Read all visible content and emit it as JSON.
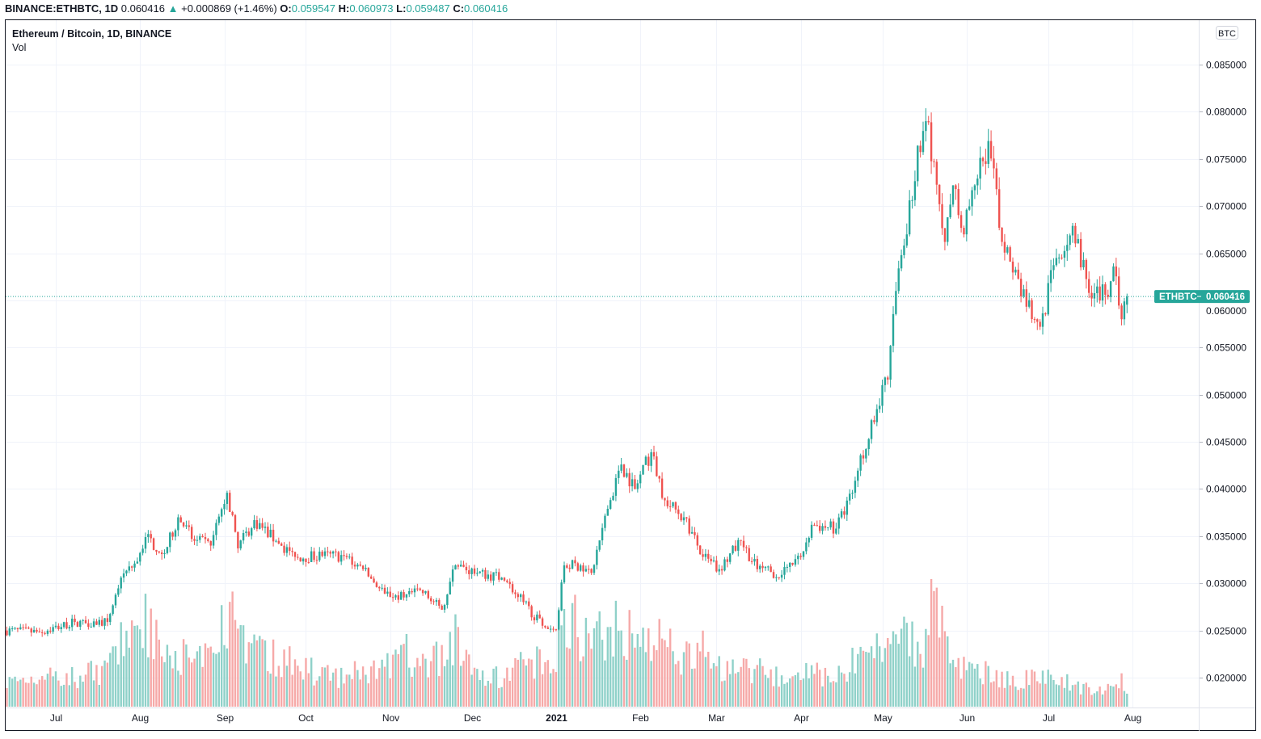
{
  "header": {
    "symbol": "BINANCE:ETHBTC, 1D",
    "last": "0.060416",
    "change": "+0.000869 (+1.46%)",
    "o_label": "O:",
    "o": "0.059547",
    "h_label": "H:",
    "h": "0.060973",
    "l_label": "L:",
    "l": "0.059487",
    "c_label": "C:",
    "c": "0.060416"
  },
  "legend": {
    "title": "Ethereum / Bitcoin, 1D, BINANCE",
    "volume": "Vol"
  },
  "currency_badge": "BTC",
  "price_label": {
    "symbol": "ETHBTC",
    "value": "0.060416"
  },
  "colors": {
    "up": "#26a69a",
    "down": "#ef5350",
    "up_vol": "#8fd1c9",
    "down_vol": "#f6a9a8",
    "grid": "#f0f3fa"
  },
  "chart_data": {
    "type": "candlestick",
    "interval": "1D",
    "ylim": [
      0.0175,
      0.0875
    ],
    "y_ticks": [
      "0.085000",
      "0.080000",
      "0.075000",
      "0.070000",
      "0.065000",
      "0.060000",
      "0.055000",
      "0.050000",
      "0.045000",
      "0.040000",
      "0.035000",
      "0.030000",
      "0.025000",
      "0.020000"
    ],
    "x_ticks": [
      {
        "label": "Jul",
        "date": "2020-07-01"
      },
      {
        "label": "Aug",
        "date": "2020-08-01"
      },
      {
        "label": "Sep",
        "date": "2020-09-01"
      },
      {
        "label": "Oct",
        "date": "2020-10-01"
      },
      {
        "label": "Nov",
        "date": "2020-11-01"
      },
      {
        "label": "Dec",
        "date": "2020-12-01"
      },
      {
        "label": "2021",
        "date": "2021-01-01"
      },
      {
        "label": "Feb",
        "date": "2021-02-01"
      },
      {
        "label": "Mar",
        "date": "2021-03-01"
      },
      {
        "label": "Apr",
        "date": "2021-04-01"
      },
      {
        "label": "May",
        "date": "2021-05-01"
      },
      {
        "label": "Jun",
        "date": "2021-06-01"
      },
      {
        "label": "Jul",
        "date": "2021-07-01"
      },
      {
        "label": "Aug",
        "date": "2021-08-01"
      }
    ],
    "close_anchors": [
      [
        "2020-06-13",
        0.025,
        20
      ],
      [
        "2020-06-25",
        0.0248,
        25
      ],
      [
        "2020-07-08",
        0.0259,
        25
      ],
      [
        "2020-07-20",
        0.0259,
        30
      ],
      [
        "2020-07-25",
        0.0306,
        50
      ],
      [
        "2020-07-31",
        0.0323,
        80
      ],
      [
        "2020-08-03",
        0.0349,
        70
      ],
      [
        "2020-08-10",
        0.0332,
        40
      ],
      [
        "2020-08-15",
        0.037,
        45
      ],
      [
        "2020-08-21",
        0.0345,
        35
      ],
      [
        "2020-08-27",
        0.034,
        40
      ],
      [
        "2020-09-02",
        0.0396,
        80
      ],
      [
        "2020-09-06",
        0.0337,
        60
      ],
      [
        "2020-09-12",
        0.0367,
        45
      ],
      [
        "2020-09-20",
        0.0345,
        40
      ],
      [
        "2020-09-27",
        0.0328,
        35
      ],
      [
        "2020-10-07",
        0.0329,
        25
      ],
      [
        "2020-10-15",
        0.0329,
        25
      ],
      [
        "2020-10-22",
        0.0315,
        30
      ],
      [
        "2020-10-30",
        0.0289,
        30
      ],
      [
        "2020-11-06",
        0.0285,
        45
      ],
      [
        "2020-11-12",
        0.0293,
        35
      ],
      [
        "2020-11-20",
        0.0272,
        40
      ],
      [
        "2020-11-25",
        0.0319,
        55
      ],
      [
        "2020-12-03",
        0.0311,
        30
      ],
      [
        "2020-12-12",
        0.0306,
        25
      ],
      [
        "2020-12-20",
        0.028,
        35
      ],
      [
        "2020-12-27",
        0.0255,
        40
      ],
      [
        "2021-01-01",
        0.0251,
        45
      ],
      [
        "2021-01-04",
        0.0319,
        85
      ],
      [
        "2021-01-10",
        0.0319,
        60
      ],
      [
        "2021-01-14",
        0.0311,
        50
      ],
      [
        "2021-01-20",
        0.0379,
        65
      ],
      [
        "2021-01-25",
        0.0426,
        70
      ],
      [
        "2021-01-30",
        0.04,
        55
      ],
      [
        "2021-02-05",
        0.0439,
        60
      ],
      [
        "2021-02-10",
        0.0388,
        50
      ],
      [
        "2021-02-17",
        0.037,
        40
      ],
      [
        "2021-02-24",
        0.0328,
        50
      ],
      [
        "2021-03-02",
        0.0315,
        35
      ],
      [
        "2021-03-10",
        0.0345,
        35
      ],
      [
        "2021-03-16",
        0.0315,
        30
      ],
      [
        "2021-03-25",
        0.0309,
        25
      ],
      [
        "2021-04-01",
        0.0328,
        25
      ],
      [
        "2021-04-05",
        0.0362,
        30
      ],
      [
        "2021-04-14",
        0.0358,
        25
      ],
      [
        "2021-04-20",
        0.0396,
        35
      ],
      [
        "2021-04-27",
        0.0473,
        45
      ],
      [
        "2021-05-03",
        0.0516,
        55
      ],
      [
        "2021-05-06",
        0.061,
        60
      ],
      [
        "2021-05-10",
        0.067,
        55
      ],
      [
        "2021-05-14",
        0.0764,
        50
      ],
      [
        "2021-05-17",
        0.079,
        55
      ],
      [
        "2021-05-20",
        0.0747,
        90
      ],
      [
        "2021-05-24",
        0.0662,
        55
      ],
      [
        "2021-05-27",
        0.0722,
        35
      ],
      [
        "2021-05-31",
        0.067,
        30
      ],
      [
        "2021-06-04",
        0.0722,
        25
      ],
      [
        "2021-06-09",
        0.0769,
        30
      ],
      [
        "2021-06-14",
        0.0662,
        25
      ],
      [
        "2021-06-20",
        0.0623,
        20
      ],
      [
        "2021-06-26",
        0.058,
        25
      ],
      [
        "2021-06-28",
        0.0572,
        25
      ],
      [
        "2021-07-04",
        0.0645,
        22
      ],
      [
        "2021-07-10",
        0.0679,
        18
      ],
      [
        "2021-07-17",
        0.0602,
        15
      ],
      [
        "2021-07-22",
        0.0606,
        15
      ],
      [
        "2021-07-25",
        0.0636,
        18
      ],
      [
        "2021-07-28",
        0.058,
        25
      ],
      [
        "2021-07-30",
        0.060416,
        10
      ]
    ]
  }
}
